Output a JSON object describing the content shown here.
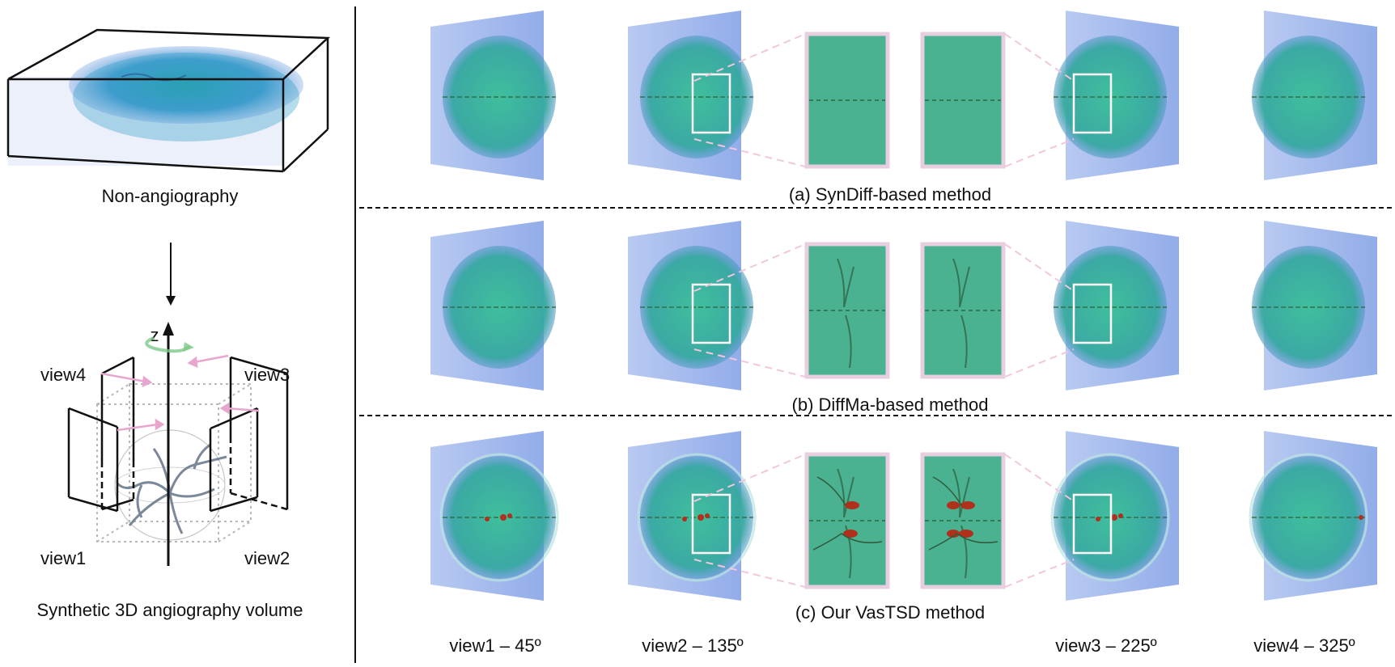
{
  "left_panel": {
    "top_caption": "Non-angiography",
    "bottom_caption": "Synthetic 3D angiography volume",
    "axis_label": "z",
    "view_labels": {
      "view1": "view1",
      "view2": "view2",
      "view3": "view3",
      "view4": "view4"
    }
  },
  "rows": [
    {
      "caption": "(a) SynDiff-based method",
      "vessel_color": "#2f6b4a",
      "vessel_accent": "#556b2f"
    },
    {
      "caption": "(b) DiffMa-based method",
      "vessel_color": "#2f6b4a",
      "vessel_accent": "#3f6a3a"
    },
    {
      "caption": "(c) Our VasTSD method",
      "vessel_color": "#2f6b4a",
      "vessel_accent": "#b0301c"
    }
  ],
  "column_labels": [
    "view1 – 45º",
    "view2 – 135º",
    "view3 – 225º",
    "view4 – 325º"
  ],
  "colors": {
    "volume_blue": "#7f9ee6",
    "brain_teal": "#3fbf9c",
    "zoom_border": "#e8cfe0",
    "dashed_pink": "#f2c6dc",
    "divider": "#111111"
  }
}
